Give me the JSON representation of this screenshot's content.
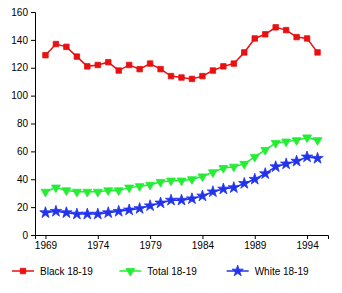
{
  "chart_data": {
    "type": "line",
    "x": [
      1969,
      1970,
      1971,
      1972,
      1973,
      1974,
      1975,
      1976,
      1977,
      1978,
      1979,
      1980,
      1981,
      1982,
      1983,
      1984,
      1985,
      1986,
      1987,
      1988,
      1989,
      1990,
      1991,
      1992,
      1993,
      1994,
      1995
    ],
    "series": [
      {
        "name": "Black 18-19",
        "color": "#e81010",
        "marker": "square",
        "values": [
          129,
          137,
          135,
          128,
          121,
          122,
          124,
          118,
          122,
          119,
          123,
          119,
          114,
          113,
          112,
          114,
          118,
          121,
          123,
          131,
          141,
          144,
          149,
          147,
          142,
          141,
          131
        ]
      },
      {
        "name": "Total 18-19",
        "color": "#22ee33",
        "marker": "triangle-down",
        "values": [
          31,
          34,
          32,
          31,
          31,
          31,
          32,
          32,
          34,
          35,
          36,
          38,
          39,
          39,
          40,
          42,
          45,
          48,
          49,
          51,
          56,
          61,
          66,
          67,
          68,
          70,
          68
        ]
      },
      {
        "name": "White 18-19",
        "color": "#2233ee",
        "marker": "star",
        "values": [
          16,
          17,
          16,
          15,
          15,
          15,
          16,
          17,
          18,
          19,
          21,
          23,
          25,
          25,
          26,
          28,
          31,
          33,
          34,
          37,
          40,
          44,
          49,
          51,
          53,
          56,
          55
        ]
      }
    ],
    "xlim": [
      1968,
      1996
    ],
    "xticks": [
      1969,
      1974,
      1979,
      1984,
      1989,
      1994
    ],
    "ylim": [
      0,
      160
    ],
    "yticks": [
      0,
      20,
      40,
      60,
      80,
      100,
      120,
      140,
      160
    ],
    "grid": false,
    "legend": "bottom"
  }
}
